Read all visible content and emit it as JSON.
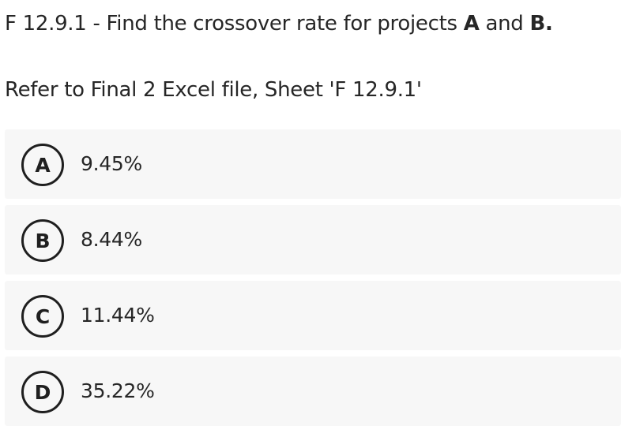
{
  "question": {
    "prefix": "F 12.9.1 - Find the crossover rate for projects ",
    "bold_a": "A",
    "middle": " and ",
    "bold_b": "B."
  },
  "instruction": "Refer to Final 2 Excel file, Sheet 'F 12.9.1'",
  "options": [
    {
      "letter": "A",
      "value": "9.45%"
    },
    {
      "letter": "B",
      "value": "8.44%"
    },
    {
      "letter": "C",
      "value": "11.44%"
    },
    {
      "letter": "D",
      "value": "35.22%"
    }
  ],
  "colors": {
    "text": "#262626",
    "option_background": "#f7f7f7",
    "badge_border": "#1f1f1f"
  }
}
